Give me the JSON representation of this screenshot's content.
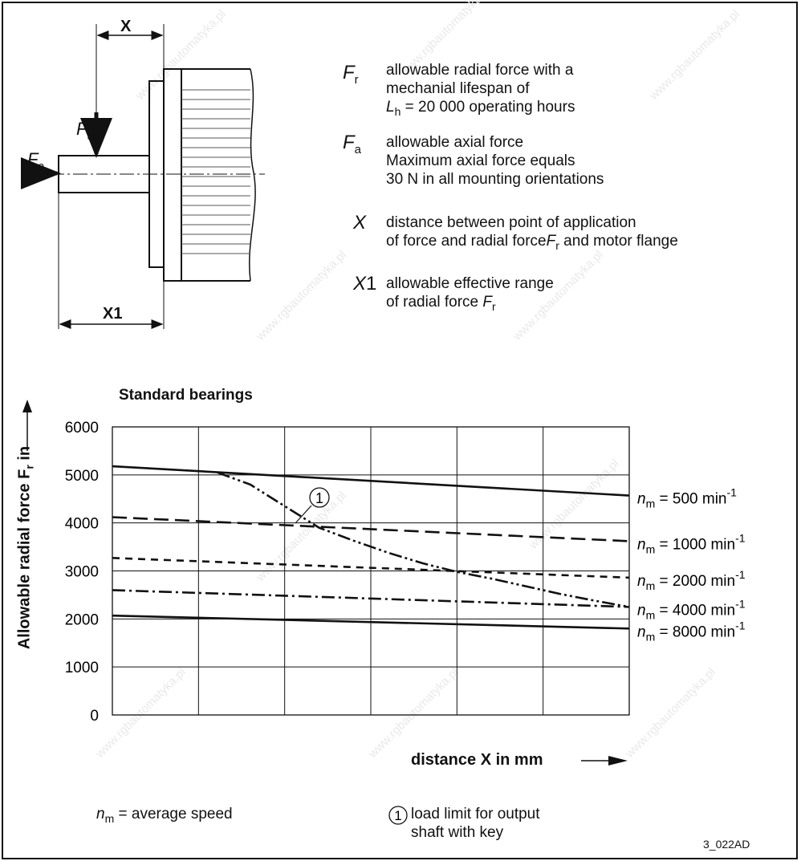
{
  "legend_block": {
    "fr": {
      "symbol": "F",
      "sub": "r",
      "text": [
        "allowable radial force with a",
        "mechanial lifespan of",
        "L",
        "h",
        " = 20 000 operating hours"
      ]
    },
    "fa": {
      "symbol": "F",
      "sub": "a",
      "text": [
        "allowable axial force",
        "Maximum axial force equals",
        "30 N in all mounting orientations"
      ]
    },
    "x": {
      "symbol": "X",
      "text": [
        "distance between point of application",
        "of force and radial force",
        "F",
        "r",
        " and motor flange"
      ]
    },
    "x1": {
      "symbol": "X",
      "symbol_suffix": "1",
      "text": [
        "allowable effective range",
        "of radial force ",
        "F",
        "r"
      ]
    }
  },
  "drawing": {
    "x_label": "X",
    "x1_label": "X1",
    "fr_label": "F",
    "fr_sub": "r",
    "fa_label": "F",
    "fa_sub": "a"
  },
  "chart_data": {
    "type": "line",
    "title": "Standard bearings",
    "xlabel": "distance X in mm",
    "ylabel": "Allowable radial force F",
    "ylabel_sub": "r",
    "ylabel_suffix": " in",
    "xlim": [
      0,
      60
    ],
    "ylim": [
      0,
      6000
    ],
    "x_ticks": [
      0,
      10,
      20,
      30,
      40,
      50,
      60
    ],
    "y_ticks": [
      0,
      1000,
      2000,
      3000,
      4000,
      5000,
      6000
    ],
    "grid": true,
    "series": [
      {
        "name": "n_m = 500 min-1",
        "label_main": "n",
        "label_sub": "m",
        "label_text": " = 500 min",
        "label_sup": "-1",
        "style": "solid",
        "x": [
          0,
          60
        ],
        "y": [
          5180,
          4570
        ]
      },
      {
        "name": "n_m = 1000 min-1",
        "label_main": "n",
        "label_sub": "m",
        "label_text": " = 1000 min",
        "label_sup": "-1",
        "style": "dash",
        "x": [
          0,
          60
        ],
        "y": [
          4120,
          3620
        ]
      },
      {
        "name": "n_m = 2000 min-1",
        "label_main": "n",
        "label_sub": "m",
        "label_text": " = 2000 min",
        "label_sup": "-1",
        "style": "shortdash",
        "x": [
          0,
          60
        ],
        "y": [
          3270,
          2860
        ]
      },
      {
        "name": "n_m = 4000 min-1",
        "label_main": "n",
        "label_sub": "m",
        "label_text": " = 4000 min",
        "label_sup": "-1",
        "style": "dashdot",
        "x": [
          0,
          60
        ],
        "y": [
          2600,
          2250
        ]
      },
      {
        "name": "n_m = 8000 min-1",
        "label_main": "n",
        "label_sub": "m",
        "label_text": " = 8000 min",
        "label_sup": "-1",
        "style": "solid",
        "x": [
          0,
          60
        ],
        "y": [
          2070,
          1800
        ]
      },
      {
        "name": "1",
        "style": "dashdotdot",
        "x": [
          12.2,
          16,
          20,
          24,
          28,
          32,
          36,
          40,
          44,
          48,
          52,
          56,
          60
        ],
        "y": [
          5050,
          4800,
          4350,
          3900,
          3630,
          3380,
          3160,
          2980,
          2840,
          2680,
          2520,
          2380,
          2250
        ]
      }
    ],
    "annotation": {
      "marker": "1",
      "text": [
        "load limit for output",
        "shaft with key"
      ]
    },
    "footnote_main": "n",
    "footnote_sub": "m",
    "footnote_text": " = average speed"
  },
  "figure_id": "3_022AD"
}
